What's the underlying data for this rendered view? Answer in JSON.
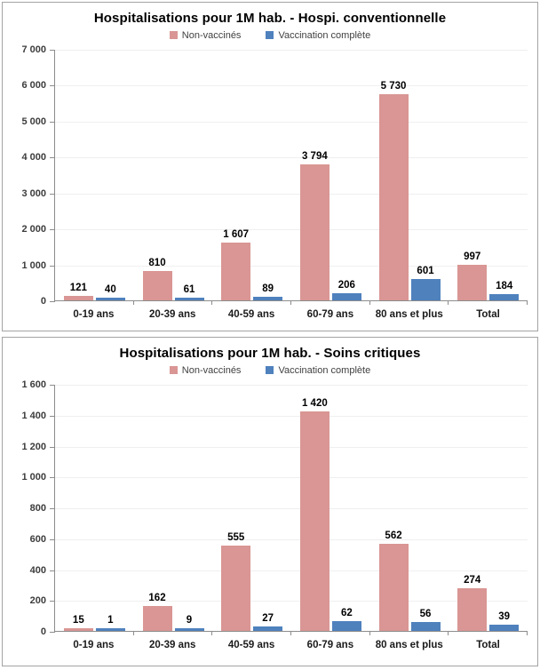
{
  "chart_data": [
    {
      "type": "bar",
      "title": "Hospitalisations pour 1M hab. - Hospi. conventionnelle",
      "categories": [
        "0-19 ans",
        "20-39 ans",
        "40-59 ans",
        "60-79 ans",
        "80 ans et plus",
        "Total"
      ],
      "series": [
        {
          "name": "Non-vaccinés",
          "color": "#D99694",
          "values": [
            121,
            810,
            1607,
            3794,
            5730,
            997
          ],
          "labels": [
            "121",
            "810",
            "1 607",
            "3 794",
            "5 730",
            "997"
          ]
        },
        {
          "name": "Vaccination complète",
          "color": "#4F81BD",
          "values": [
            40,
            61,
            89,
            206,
            601,
            184
          ],
          "labels": [
            "40",
            "61",
            "89",
            "206",
            "601",
            "184"
          ]
        }
      ],
      "xlabel": "",
      "ylabel": "",
      "ylim": [
        0,
        7000
      ],
      "ytick_step": 1000,
      "yticks": [
        "0",
        "1 000",
        "2 000",
        "3 000",
        "4 000",
        "5 000",
        "6 000",
        "7 000"
      ],
      "grid": true,
      "legend_position": "top"
    },
    {
      "type": "bar",
      "title": "Hospitalisations pour 1M hab. - Soins critiques",
      "categories": [
        "0-19 ans",
        "20-39 ans",
        "40-59 ans",
        "60-79 ans",
        "80 ans et plus",
        "Total"
      ],
      "series": [
        {
          "name": "Non-vaccinés",
          "color": "#D99694",
          "values": [
            15,
            162,
            555,
            1420,
            562,
            274
          ],
          "labels": [
            "15",
            "162",
            "555",
            "1 420",
            "562",
            "274"
          ]
        },
        {
          "name": "Vaccination complète",
          "color": "#4F81BD",
          "values": [
            1,
            9,
            27,
            62,
            56,
            39
          ],
          "labels": [
            "1",
            "9",
            "27",
            "62",
            "56",
            "39"
          ]
        }
      ],
      "xlabel": "",
      "ylabel": "",
      "ylim": [
        0,
        1600
      ],
      "ytick_step": 200,
      "yticks": [
        "0",
        "200",
        "400",
        "600",
        "800",
        "1 000",
        "1 200",
        "1 400",
        "1 600"
      ],
      "grid": true,
      "legend_position": "top"
    }
  ],
  "colors": {
    "non_vaccines": "#D99694",
    "vaccination_complete": "#4F81BD",
    "axis": "#8C8C8C",
    "gridline": "#EFEFEF",
    "panel_border": "#A3A3A3"
  }
}
